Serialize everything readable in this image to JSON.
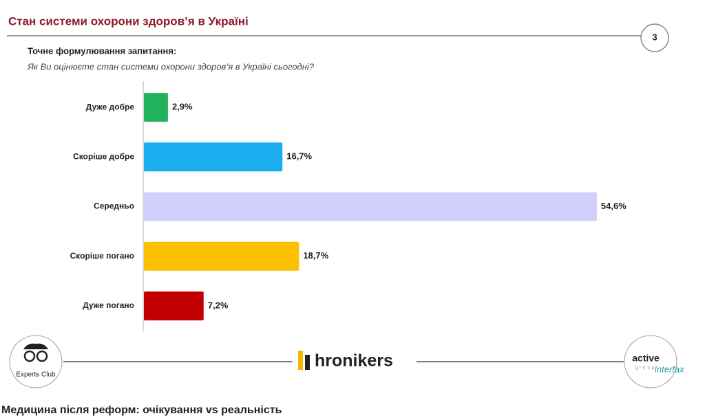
{
  "slide": {
    "title": "Стан системи охорони здоров’я в Україні",
    "page_number": 3,
    "question_label": "Точне формулювання запитання:",
    "question": "Як Ви оцінюєте стан системи охорони здоров’я в Україні сьогодні?"
  },
  "logos": {
    "left": "Experts Club",
    "center": "hronikers",
    "right_top": "active",
    "right_middle": "group",
    "right_bottom": "Interfax"
  },
  "caption": "Медицина після реформ: очікування vs реальність",
  "chart_data": {
    "type": "bar",
    "orientation": "horizontal",
    "categories": [
      "Дуже добре",
      "Скоріше добре",
      "Середньо",
      "Скоріше погано",
      "Дуже погано"
    ],
    "values": [
      2.9,
      16.7,
      54.6,
      18.7,
      7.2
    ],
    "value_labels": [
      "2,9%",
      "16,7%",
      "54,6%",
      "18,7%",
      "7,2%"
    ],
    "colors": [
      "#21b35b",
      "#1aaeee",
      "#d0d0fb",
      "#fbc000",
      "#c00000"
    ]
  }
}
